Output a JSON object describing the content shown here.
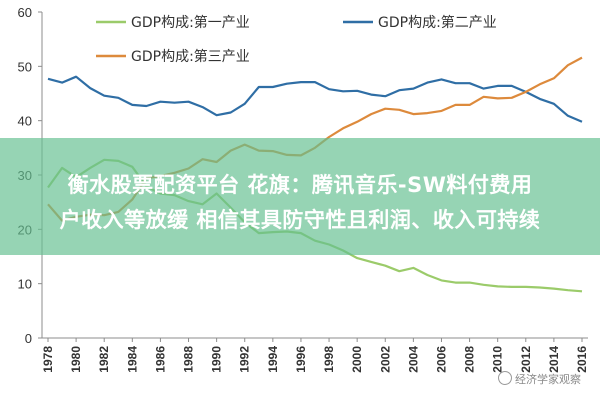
{
  "banner": {
    "line1": "衡水股票配资平台 花旗：腾讯音乐-SW料付费用",
    "line2": "户收入等放缓 相信其具防守性且利润、收入可持续"
  },
  "watermark": {
    "text": "经济学家观察"
  },
  "chart_data": {
    "type": "line",
    "grid": false,
    "legend_position": "top",
    "ylim": [
      0,
      60
    ],
    "y_ticks": [
      0,
      10,
      20,
      30,
      40,
      50,
      60
    ],
    "x_ticks": [
      "1978",
      "1980",
      "1982",
      "1984",
      "1986",
      "1988",
      "1990",
      "1992",
      "1994",
      "1996",
      "1998",
      "2000",
      "2002",
      "2004",
      "2006",
      "2008",
      "2010",
      "2012",
      "2014",
      "2016"
    ],
    "x": [
      1978,
      1979,
      1980,
      1981,
      1982,
      1983,
      1984,
      1985,
      1986,
      1987,
      1988,
      1989,
      1990,
      1991,
      1992,
      1993,
      1994,
      1995,
      1996,
      1997,
      1998,
      1999,
      2000,
      2001,
      2002,
      2003,
      2004,
      2005,
      2006,
      2007,
      2008,
      2009,
      2010,
      2011,
      2012,
      2013,
      2014,
      2015,
      2016
    ],
    "series": [
      {
        "name": "GDP构成:第一产业",
        "color": "#9bcb6a",
        "values": [
          27.7,
          31.3,
          29.6,
          31.3,
          32.8,
          32.6,
          31.5,
          27.9,
          26.6,
          26.3,
          25.2,
          24.6,
          26.6,
          24.0,
          21.3,
          19.3,
          19.5,
          19.6,
          19.3,
          17.9,
          17.2,
          16.1,
          14.7,
          14.0,
          13.3,
          12.3,
          12.9,
          11.6,
          10.6,
          10.2,
          10.2,
          9.8,
          9.5,
          9.4,
          9.4,
          9.3,
          9.1,
          8.8,
          8.6
        ]
      },
      {
        "name": "GDP构成:第二产业",
        "color": "#2f6ea5",
        "values": [
          47.7,
          47.0,
          48.1,
          46.0,
          44.6,
          44.2,
          42.9,
          42.7,
          43.5,
          43.3,
          43.5,
          42.5,
          41.0,
          41.5,
          43.1,
          46.2,
          46.2,
          46.8,
          47.1,
          47.1,
          45.8,
          45.4,
          45.5,
          44.8,
          44.5,
          45.6,
          45.9,
          47.0,
          47.6,
          46.9,
          46.9,
          45.9,
          46.4,
          46.4,
          45.3,
          44.0,
          43.1,
          40.9,
          39.8
        ]
      },
      {
        "name": "GDP构成:第三产业",
        "color": "#dd8a3c",
        "values": [
          24.6,
          21.6,
          22.3,
          22.7,
          22.6,
          23.2,
          25.5,
          29.4,
          29.8,
          30.4,
          31.2,
          32.9,
          32.4,
          34.5,
          35.6,
          34.5,
          34.4,
          33.7,
          33.6,
          35.0,
          37.0,
          38.6,
          39.8,
          41.2,
          42.2,
          42.0,
          41.2,
          41.4,
          41.8,
          42.9,
          42.9,
          44.4,
          44.1,
          44.2,
          45.3,
          46.7,
          47.8,
          50.2,
          51.6
        ]
      }
    ]
  }
}
